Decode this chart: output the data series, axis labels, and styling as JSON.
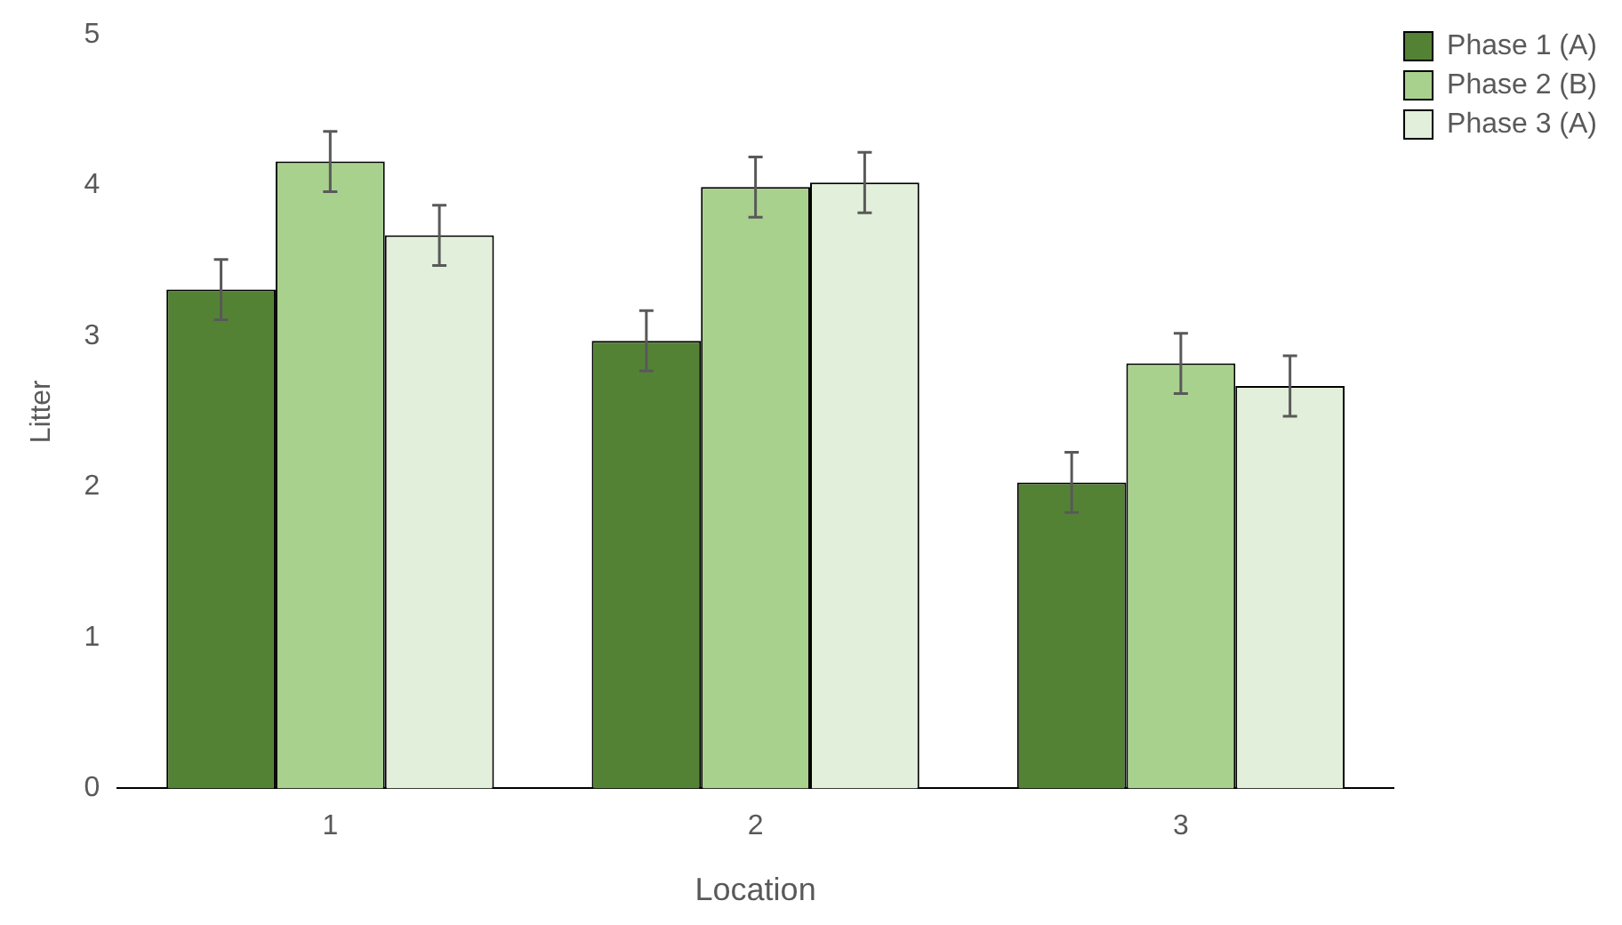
{
  "chart_data": {
    "type": "bar",
    "xlabel": "Location",
    "ylabel": "Litter",
    "categories": [
      "1",
      "2",
      "3"
    ],
    "series": [
      {
        "name": "Phase 1 (A)",
        "color": "#548235",
        "values": [
          3.31,
          2.97,
          2.03
        ],
        "errors": [
          0.2,
          0.2,
          0.2
        ]
      },
      {
        "name": "Phase 2 (B)",
        "color": "#a9d18e",
        "values": [
          4.16,
          3.99,
          2.82
        ],
        "errors": [
          0.2,
          0.2,
          0.2
        ]
      },
      {
        "name": "Phase 3 (A)",
        "color": "#e2efda",
        "values": [
          3.67,
          4.02,
          2.67
        ],
        "errors": [
          0.2,
          0.2,
          0.2
        ]
      }
    ],
    "ylim": [
      0,
      5
    ],
    "yticks": [
      0,
      1,
      2,
      3,
      4,
      5
    ],
    "grid": false,
    "legend": "top right"
  }
}
